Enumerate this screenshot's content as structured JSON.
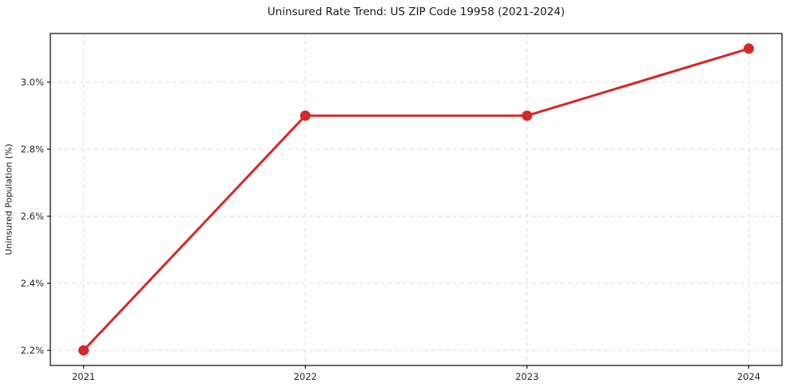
{
  "chart_data": {
    "type": "line",
    "title": "Uninsured Rate Trend: US ZIP Code 19958 (2021-2024)",
    "xlabel": "",
    "ylabel": "Uninsured Population (%)",
    "x": [
      2021,
      2022,
      2023,
      2024
    ],
    "x_tick_labels": [
      "2021",
      "2022",
      "2023",
      "2024"
    ],
    "series": [
      {
        "name": "uninsured-rate",
        "values": [
          2.2,
          2.9,
          2.9,
          3.1
        ],
        "color": "#d62728",
        "marker": "circle",
        "line_width": 3,
        "marker_radius": 6.5
      }
    ],
    "y_ticks": [
      2.2,
      2.4,
      2.6,
      2.8,
      3.0
    ],
    "y_tick_labels": [
      "2.2%",
      "2.4%",
      "2.6%",
      "2.8%",
      "3.0%"
    ],
    "xlim": [
      2020.85,
      2024.15
    ],
    "ylim": [
      2.155,
      3.145
    ],
    "grid": true,
    "grid_style": "dashed",
    "grid_color": "#dcdcdc",
    "spine_color": "#1a1a1a",
    "legend": "none"
  }
}
